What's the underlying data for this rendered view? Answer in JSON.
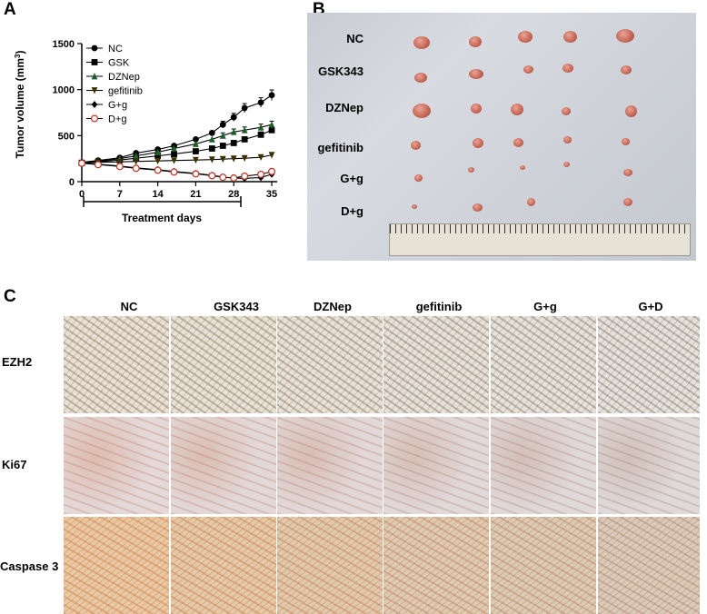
{
  "panels": {
    "a": "A",
    "b": "B",
    "c": "C"
  },
  "chart_data": {
    "type": "line",
    "title": "",
    "xlabel": "Treatment days",
    "ylabel": "Tumor volume (mm",
    "ylabel_sup": "3",
    "ylabel_end": ")",
    "x_ticks": [
      0,
      7,
      14,
      21,
      28,
      35
    ],
    "y_ticks": [
      0,
      500,
      1000,
      1500
    ],
    "xlim": [
      0,
      36
    ],
    "ylim": [
      0,
      1500
    ],
    "legend_position": "top-left",
    "x": [
      0,
      3,
      7,
      10,
      14,
      17,
      21,
      24,
      26,
      28,
      30,
      33,
      35
    ],
    "series": [
      {
        "name": "NC",
        "marker": "circle-filled",
        "values": [
          210,
          230,
          260,
          310,
          350,
          390,
          460,
          530,
          620,
          700,
          800,
          860,
          940
        ]
      },
      {
        "name": "GSK",
        "marker": "square-filled",
        "values": [
          205,
          215,
          235,
          255,
          280,
          300,
          330,
          360,
          390,
          420,
          460,
          510,
          560
        ]
      },
      {
        "name": "DZNep",
        "marker": "triangle-up",
        "values": [
          205,
          220,
          250,
          280,
          320,
          360,
          410,
          460,
          500,
          540,
          560,
          590,
          620
        ]
      },
      {
        "name": "gefitinib",
        "marker": "triangle-down",
        "values": [
          200,
          210,
          215,
          220,
          225,
          230,
          235,
          240,
          245,
          250,
          255,
          265,
          290
        ]
      },
      {
        "name": "G+g",
        "marker": "diamond-filled",
        "values": [
          200,
          190,
          170,
          150,
          130,
          110,
          90,
          70,
          50,
          40,
          35,
          45,
          80
        ]
      },
      {
        "name": "D+g",
        "marker": "circle-open",
        "values": [
          200,
          185,
          165,
          145,
          125,
          105,
          85,
          65,
          48,
          40,
          60,
          80,
          110
        ]
      }
    ]
  },
  "photo": {
    "row_labels": [
      "NC",
      "GSK343",
      "DZNep",
      "gefitinib",
      "G+g",
      "D+g"
    ]
  },
  "ihc": {
    "columns": [
      "NC",
      "GSK343",
      "DZNep",
      "gefitinib",
      "G+g",
      "G+D"
    ],
    "rows": [
      "EZH2",
      "Ki67",
      "Caspase 3"
    ]
  },
  "colors": {
    "line": "#000000",
    "tumor": "#c86a5a"
  }
}
